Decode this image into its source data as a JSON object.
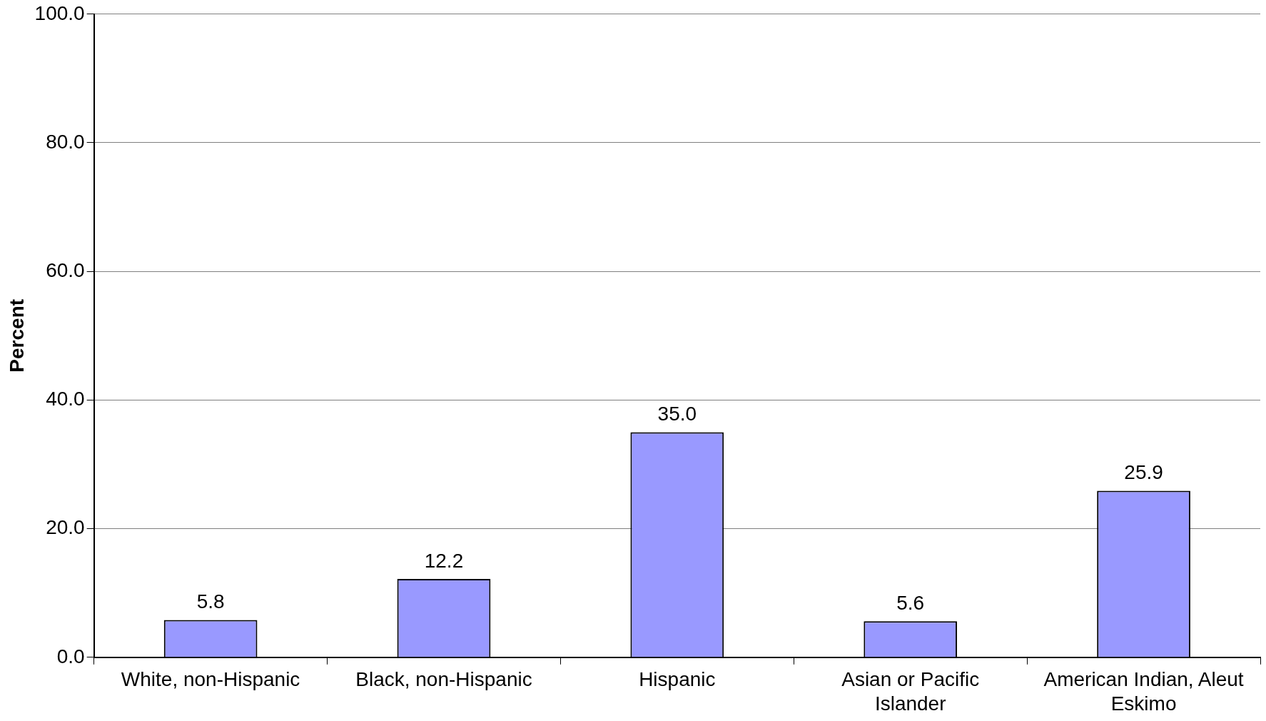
{
  "chart_data": {
    "type": "bar",
    "ylabel": "Percent",
    "categories": [
      "White, non-Hispanic",
      "Black, non-Hispanic",
      "Hispanic",
      "Asian or Pacific Islander",
      "American Indian, Aleut Eskimo"
    ],
    "values": [
      5.8,
      12.2,
      35.0,
      5.6,
      25.9
    ],
    "value_labels": [
      "5.8",
      "12.2",
      "35.0",
      "5.6",
      "25.9"
    ],
    "color": "#9999ff",
    "ylim": [
      0,
      100
    ],
    "yticks": [
      {
        "value": 0,
        "label": "0.0"
      },
      {
        "value": 20,
        "label": "20.0"
      },
      {
        "value": 40,
        "label": "40.0"
      },
      {
        "value": 60,
        "label": "60.0"
      },
      {
        "value": 80,
        "label": "80.0"
      },
      {
        "value": 100,
        "label": "100.0"
      }
    ],
    "grid": "y",
    "legend": false
  }
}
